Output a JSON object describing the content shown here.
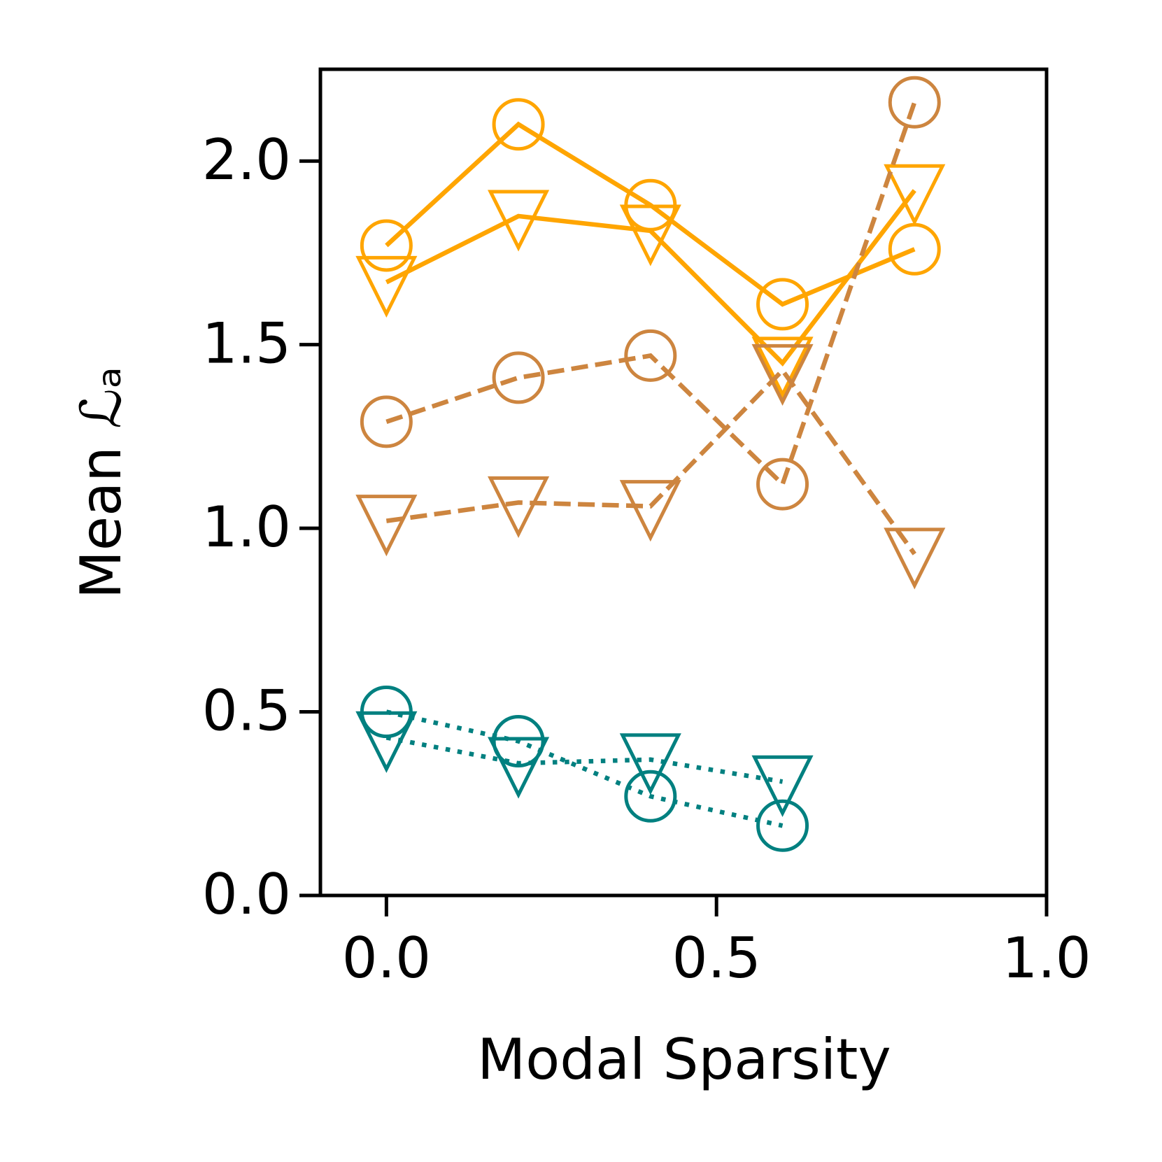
{
  "chart_data": {
    "type": "line",
    "xlabel": "Modal Sparsity",
    "ylabel": "Mean ℒₐ",
    "x": [
      0.0,
      0.2,
      0.4,
      0.6,
      0.8
    ],
    "series": [
      {
        "color": "#FFA500",
        "linestyle": "solid",
        "marker": "circle",
        "values": [
          1.77,
          2.1,
          1.88,
          1.61,
          1.76
        ]
      },
      {
        "color": "#FFA500",
        "linestyle": "solid",
        "marker": "triangle-down",
        "values": [
          1.67,
          1.85,
          1.81,
          1.45,
          1.92
        ]
      },
      {
        "color": "#CD853F",
        "linestyle": "dashed",
        "marker": "circle",
        "values": [
          1.29,
          1.41,
          1.47,
          1.12,
          2.16
        ]
      },
      {
        "color": "#CD853F",
        "linestyle": "dashed",
        "marker": "triangle-down",
        "values": [
          1.02,
          1.07,
          1.06,
          1.43,
          0.93
        ]
      },
      {
        "color": "#008080",
        "linestyle": "dotted",
        "marker": "circle",
        "values": [
          0.5,
          0.42,
          0.27,
          0.19,
          null
        ]
      },
      {
        "color": "#008080",
        "linestyle": "dotted",
        "marker": "triangle-down",
        "values": [
          0.43,
          0.36,
          0.37,
          0.31,
          null
        ]
      }
    ],
    "xlim": [
      -0.1,
      1.0
    ],
    "ylim": [
      0,
      2.25
    ],
    "xticks": [
      {
        "value": 0,
        "label": "0.0"
      },
      0.5,
      {
        "value": 1,
        "label": "1.0"
      }
    ],
    "yticks": [
      {
        "value": 0,
        "label": "0.0"
      },
      0.5,
      {
        "value": 1,
        "label": "1.0"
      },
      1.5,
      {
        "value": 2,
        "label": "2.0"
      }
    ],
    "grid": false
  }
}
